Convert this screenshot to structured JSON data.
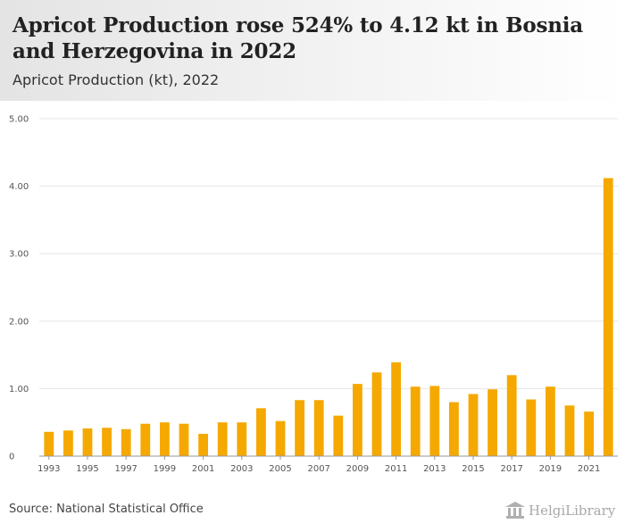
{
  "header": {
    "title": "Apricot Production rose 524% to 4.12 kt in Bosnia and Herzegovina in 2022",
    "subtitle": "Apricot Production (kt), 2022"
  },
  "footer": {
    "source": "Source: National Statistical Office",
    "logo_text": "HelgiLibrary"
  },
  "colors": {
    "bar": "#f5a800",
    "grid": "#e6e6e6",
    "axis": "#999999"
  },
  "chart_data": {
    "type": "bar",
    "title": "Apricot Production rose 524% to 4.12 kt in Bosnia and Herzegovina in 2022",
    "subtitle": "Apricot Production (kt), 2022",
    "xlabel": "",
    "ylabel": "",
    "ylim": [
      0,
      5
    ],
    "yticks": [
      "0",
      "1.00",
      "2.00",
      "3.00",
      "4.00",
      "5.00"
    ],
    "xtick_labels": [
      "1993",
      "1995",
      "1997",
      "1999",
      "2001",
      "2003",
      "2005",
      "2007",
      "2009",
      "2011",
      "2013",
      "2015",
      "2017",
      "2019",
      "2021"
    ],
    "grid": true,
    "categories": [
      "1993",
      "1994",
      "1995",
      "1996",
      "1997",
      "1998",
      "1999",
      "2000",
      "2001",
      "2002",
      "2003",
      "2004",
      "2005",
      "2006",
      "2007",
      "2008",
      "2009",
      "2010",
      "2011",
      "2012",
      "2013",
      "2014",
      "2015",
      "2016",
      "2017",
      "2018",
      "2019",
      "2020",
      "2021",
      "2022"
    ],
    "values": [
      0.36,
      0.38,
      0.41,
      0.42,
      0.4,
      0.48,
      0.5,
      0.48,
      0.33,
      0.5,
      0.5,
      0.71,
      0.52,
      0.83,
      0.83,
      0.6,
      1.07,
      1.24,
      1.39,
      1.03,
      1.04,
      0.8,
      0.92,
      0.99,
      1.2,
      0.84,
      1.03,
      0.75,
      0.66,
      4.12
    ]
  }
}
